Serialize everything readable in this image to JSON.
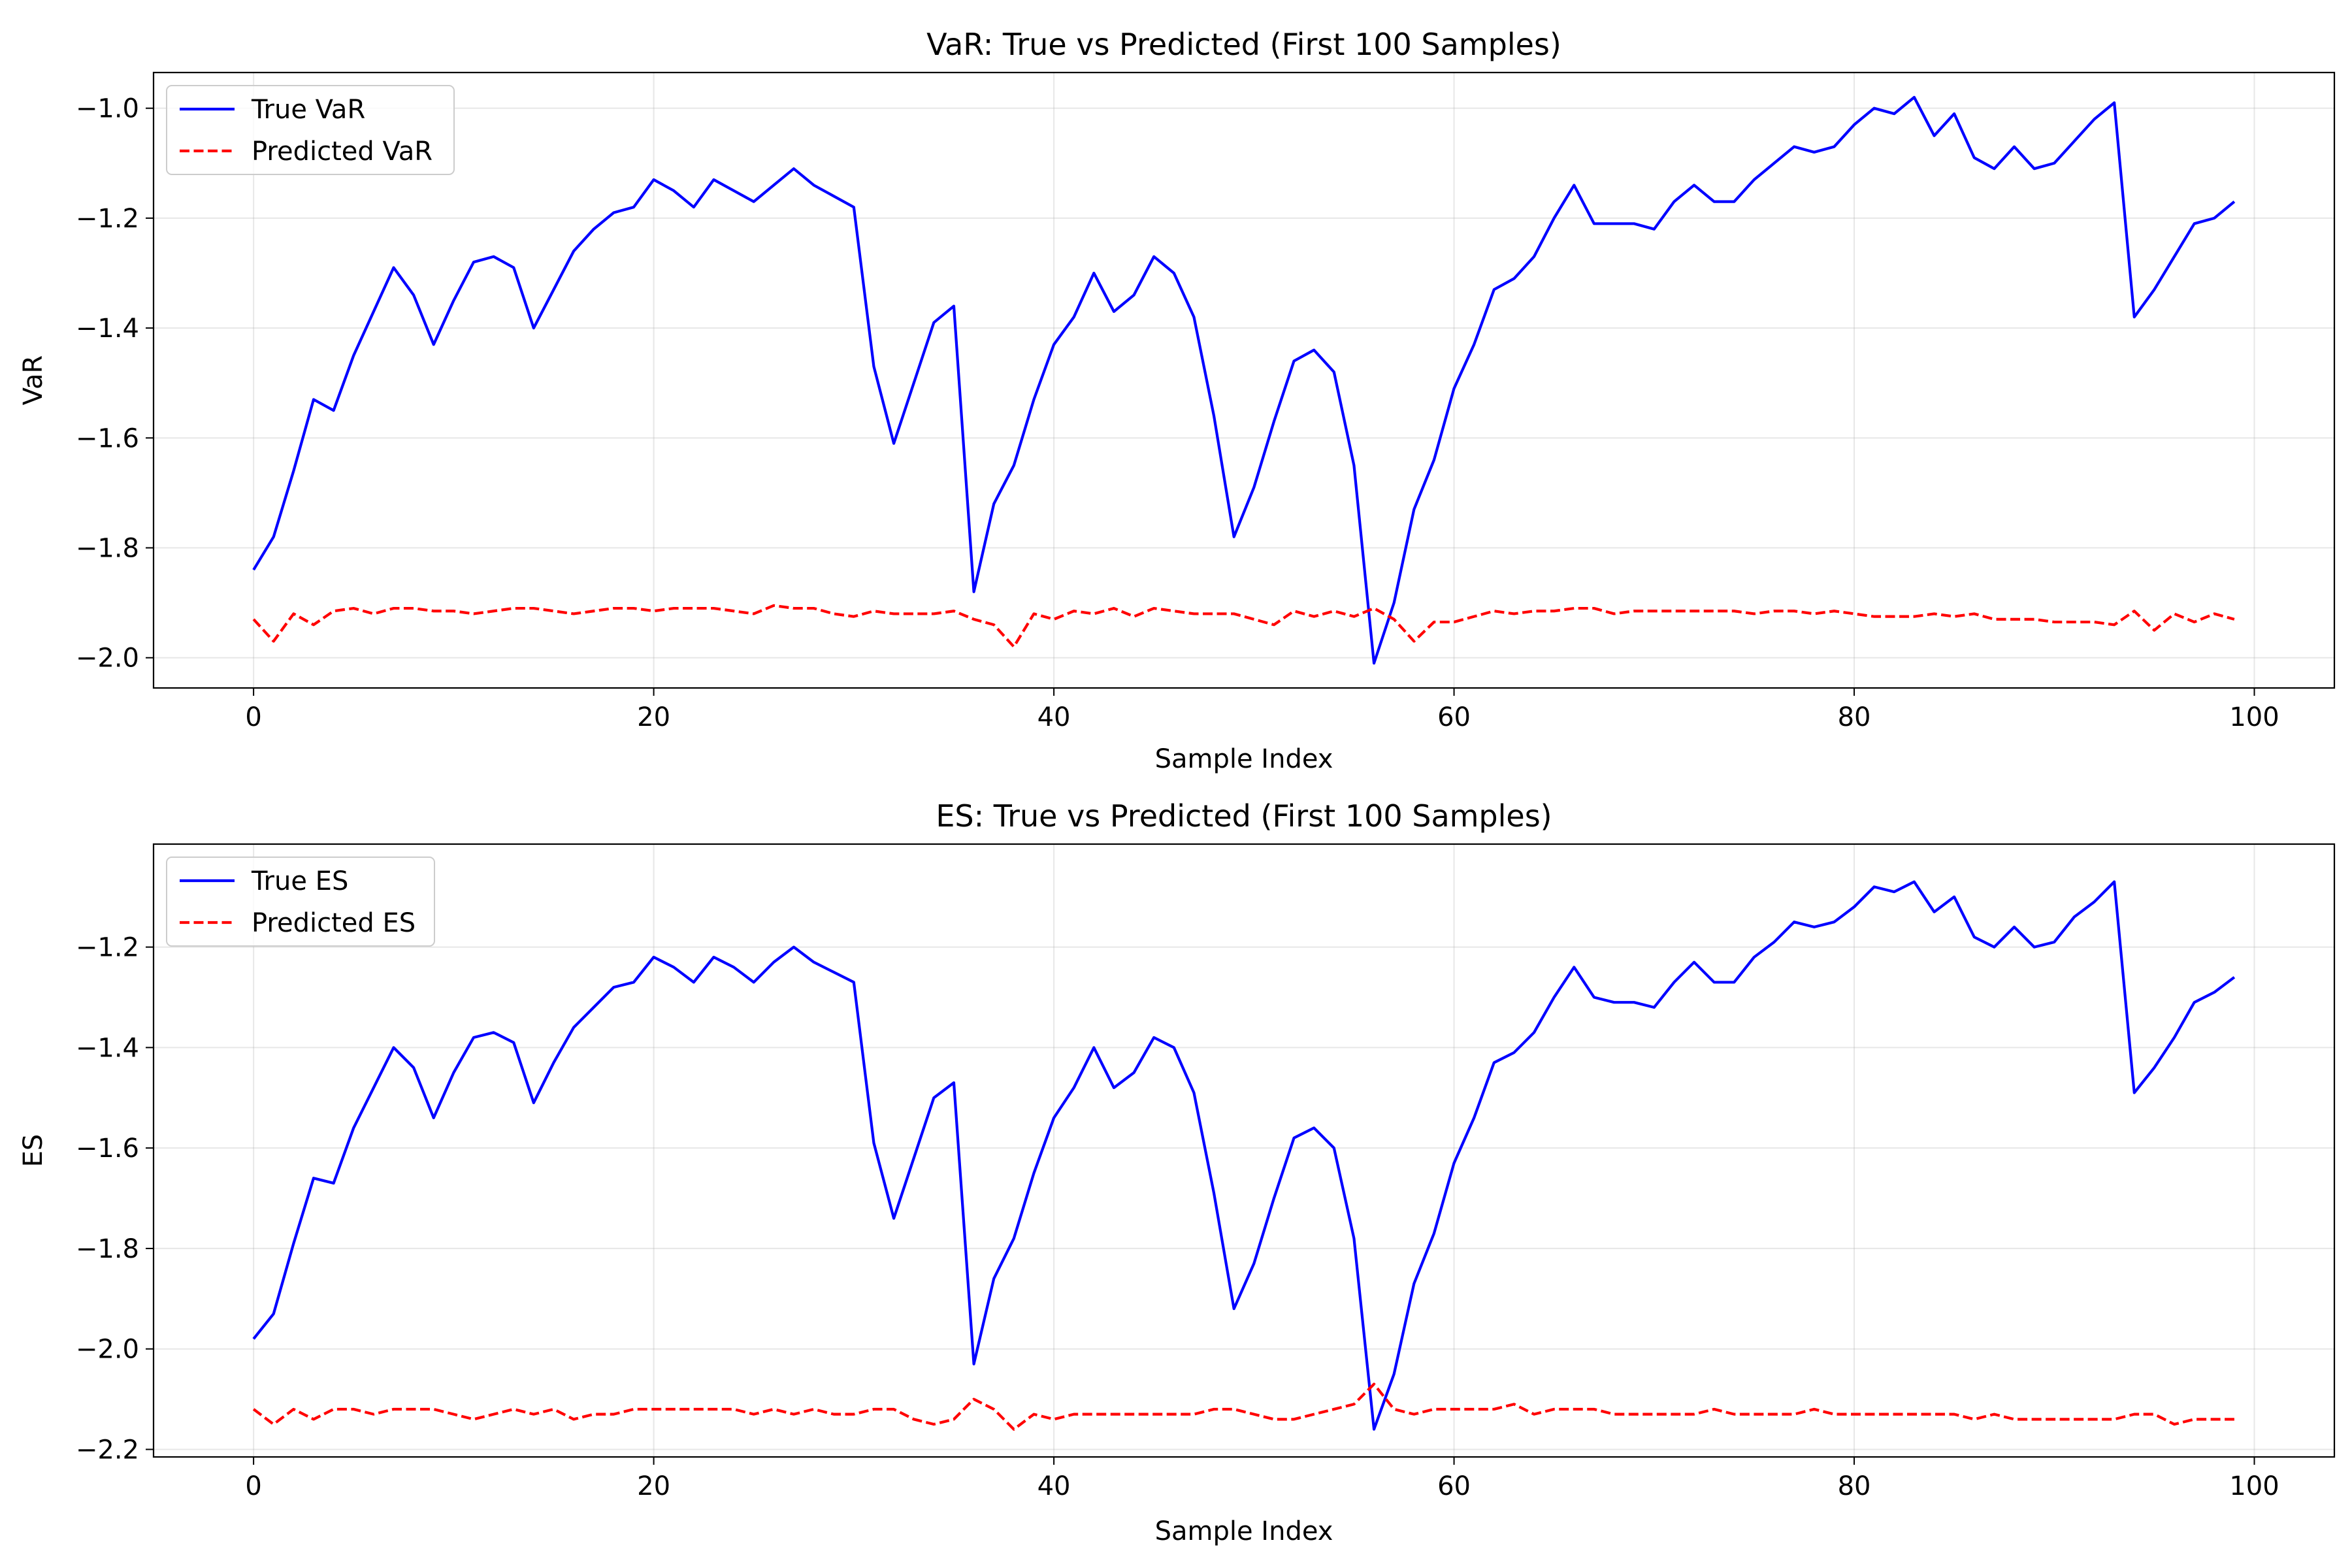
{
  "chart_data": [
    {
      "type": "line",
      "title": "VaR: True vs Predicted (First 100 Samples)",
      "xlabel": "Sample Index",
      "ylabel": "VaR",
      "xlim": [
        -5,
        104
      ],
      "ylim": [
        -2.055,
        -0.935
      ],
      "xticks": [
        0,
        20,
        40,
        60,
        80,
        100
      ],
      "yticks": [
        -2.0,
        -1.8,
        -1.6,
        -1.4,
        -1.2,
        -1.0
      ],
      "ytick_labels": [
        "−2.0",
        "−1.8",
        "−1.6",
        "−1.4",
        "−1.2",
        "−1.0"
      ],
      "grid": true,
      "legend": "upper-left",
      "series": [
        {
          "name": "True VaR",
          "color": "#0000ff",
          "style": "solid",
          "values": [
            -1.84,
            -1.78,
            -1.66,
            -1.53,
            -1.55,
            -1.45,
            -1.37,
            -1.29,
            -1.34,
            -1.43,
            -1.35,
            -1.28,
            -1.27,
            -1.29,
            -1.4,
            -1.33,
            -1.26,
            -1.22,
            -1.19,
            -1.18,
            -1.13,
            -1.15,
            -1.18,
            -1.13,
            -1.15,
            -1.17,
            -1.14,
            -1.11,
            -1.14,
            -1.16,
            -1.18,
            -1.47,
            -1.61,
            -1.5,
            -1.39,
            -1.36,
            -1.88,
            -1.72,
            -1.65,
            -1.53,
            -1.43,
            -1.38,
            -1.3,
            -1.37,
            -1.34,
            -1.27,
            -1.3,
            -1.38,
            -1.56,
            -1.78,
            -1.69,
            -1.57,
            -1.46,
            -1.44,
            -1.48,
            -1.65,
            -2.01,
            -1.9,
            -1.73,
            -1.64,
            -1.51,
            -1.43,
            -1.33,
            -1.31,
            -1.27,
            -1.2,
            -1.14,
            -1.21,
            -1.21,
            -1.21,
            -1.22,
            -1.17,
            -1.14,
            -1.17,
            -1.17,
            -1.13,
            -1.1,
            -1.07,
            -1.08,
            -1.07,
            -1.03,
            -1.0,
            -1.01,
            -0.98,
            -1.05,
            -1.01,
            -1.09,
            -1.11,
            -1.07,
            -1.11,
            -1.1,
            -1.06,
            -1.02,
            -0.99,
            -1.38,
            -1.33,
            -1.27,
            -1.21,
            -1.2,
            -1.17
          ]
        },
        {
          "name": "Predicted VaR",
          "color": "#ff0000",
          "style": "dashed",
          "values": [
            -1.93,
            -1.97,
            -1.92,
            -1.94,
            -1.915,
            -1.91,
            -1.92,
            -1.91,
            -1.91,
            -1.915,
            -1.915,
            -1.92,
            -1.915,
            -1.91,
            -1.91,
            -1.915,
            -1.92,
            -1.915,
            -1.91,
            -1.91,
            -1.915,
            -1.91,
            -1.91,
            -1.91,
            -1.915,
            -1.92,
            -1.905,
            -1.91,
            -1.91,
            -1.92,
            -1.925,
            -1.915,
            -1.92,
            -1.92,
            -1.92,
            -1.915,
            -1.93,
            -1.94,
            -1.98,
            -1.92,
            -1.93,
            -1.915,
            -1.92,
            -1.91,
            -1.925,
            -1.91,
            -1.915,
            -1.92,
            -1.92,
            -1.92,
            -1.93,
            -1.94,
            -1.915,
            -1.925,
            -1.915,
            -1.925,
            -1.91,
            -1.93,
            -1.97,
            -1.935,
            -1.935,
            -1.925,
            -1.915,
            -1.92,
            -1.915,
            -1.915,
            -1.91,
            -1.91,
            -1.92,
            -1.915,
            -1.915,
            -1.915,
            -1.915,
            -1.915,
            -1.915,
            -1.92,
            -1.915,
            -1.915,
            -1.92,
            -1.915,
            -1.92,
            -1.925,
            -1.925,
            -1.925,
            -1.92,
            -1.925,
            -1.92,
            -1.93,
            -1.93,
            -1.93,
            -1.935,
            -1.935,
            -1.935,
            -1.94,
            -1.915,
            -1.95,
            -1.92,
            -1.935,
            -1.92,
            -1.93
          ]
        }
      ]
    },
    {
      "type": "line",
      "title": "ES: True vs Predicted (First 100 Samples)",
      "xlabel": "Sample Index",
      "ylabel": "ES",
      "xlim": [
        -5,
        104
      ],
      "ylim": [
        -2.215,
        -0.995
      ],
      "xticks": [
        0,
        20,
        40,
        60,
        80,
        100
      ],
      "yticks": [
        -2.2,
        -2.0,
        -1.8,
        -1.6,
        -1.4,
        -1.2
      ],
      "ytick_labels": [
        "−2.2",
        "−2.0",
        "−1.8",
        "−1.6",
        "−1.4",
        "−1.2"
      ],
      "grid": true,
      "legend": "upper-left",
      "series": [
        {
          "name": "True ES",
          "color": "#0000ff",
          "style": "solid",
          "values": [
            -1.98,
            -1.93,
            -1.79,
            -1.66,
            -1.67,
            -1.56,
            -1.48,
            -1.4,
            -1.44,
            -1.54,
            -1.45,
            -1.38,
            -1.37,
            -1.39,
            -1.51,
            -1.43,
            -1.36,
            -1.32,
            -1.28,
            -1.27,
            -1.22,
            -1.24,
            -1.27,
            -1.22,
            -1.24,
            -1.27,
            -1.23,
            -1.2,
            -1.23,
            -1.25,
            -1.27,
            -1.59,
            -1.74,
            -1.62,
            -1.5,
            -1.47,
            -2.03,
            -1.86,
            -1.78,
            -1.65,
            -1.54,
            -1.48,
            -1.4,
            -1.48,
            -1.45,
            -1.38,
            -1.4,
            -1.49,
            -1.69,
            -1.92,
            -1.83,
            -1.7,
            -1.58,
            -1.56,
            -1.6,
            -1.78,
            -2.16,
            -2.05,
            -1.87,
            -1.77,
            -1.63,
            -1.54,
            -1.43,
            -1.41,
            -1.37,
            -1.3,
            -1.24,
            -1.3,
            -1.31,
            -1.31,
            -1.32,
            -1.27,
            -1.23,
            -1.27,
            -1.27,
            -1.22,
            -1.19,
            -1.15,
            -1.16,
            -1.15,
            -1.12,
            -1.08,
            -1.09,
            -1.07,
            -1.13,
            -1.1,
            -1.18,
            -1.2,
            -1.16,
            -1.2,
            -1.19,
            -1.14,
            -1.11,
            -1.07,
            -1.49,
            -1.44,
            -1.38,
            -1.31,
            -1.29,
            -1.26
          ]
        },
        {
          "name": "Predicted ES",
          "color": "#ff0000",
          "style": "dashed",
          "values": [
            -2.12,
            -2.15,
            -2.12,
            -2.14,
            -2.12,
            -2.12,
            -2.13,
            -2.12,
            -2.12,
            -2.12,
            -2.13,
            -2.14,
            -2.13,
            -2.12,
            -2.13,
            -2.12,
            -2.14,
            -2.13,
            -2.13,
            -2.12,
            -2.12,
            -2.12,
            -2.12,
            -2.12,
            -2.12,
            -2.13,
            -2.12,
            -2.13,
            -2.12,
            -2.13,
            -2.13,
            -2.12,
            -2.12,
            -2.14,
            -2.15,
            -2.14,
            -2.1,
            -2.12,
            -2.16,
            -2.13,
            -2.14,
            -2.13,
            -2.13,
            -2.13,
            -2.13,
            -2.13,
            -2.13,
            -2.13,
            -2.12,
            -2.12,
            -2.13,
            -2.14,
            -2.14,
            -2.13,
            -2.12,
            -2.11,
            -2.07,
            -2.12,
            -2.13,
            -2.12,
            -2.12,
            -2.12,
            -2.12,
            -2.11,
            -2.13,
            -2.12,
            -2.12,
            -2.12,
            -2.13,
            -2.13,
            -2.13,
            -2.13,
            -2.13,
            -2.12,
            -2.13,
            -2.13,
            -2.13,
            -2.13,
            -2.12,
            -2.13,
            -2.13,
            -2.13,
            -2.13,
            -2.13,
            -2.13,
            -2.13,
            -2.14,
            -2.13,
            -2.14,
            -2.14,
            -2.14,
            -2.14,
            -2.14,
            -2.14,
            -2.13,
            -2.13,
            -2.15,
            -2.14,
            -2.14,
            -2.14
          ]
        }
      ]
    }
  ]
}
